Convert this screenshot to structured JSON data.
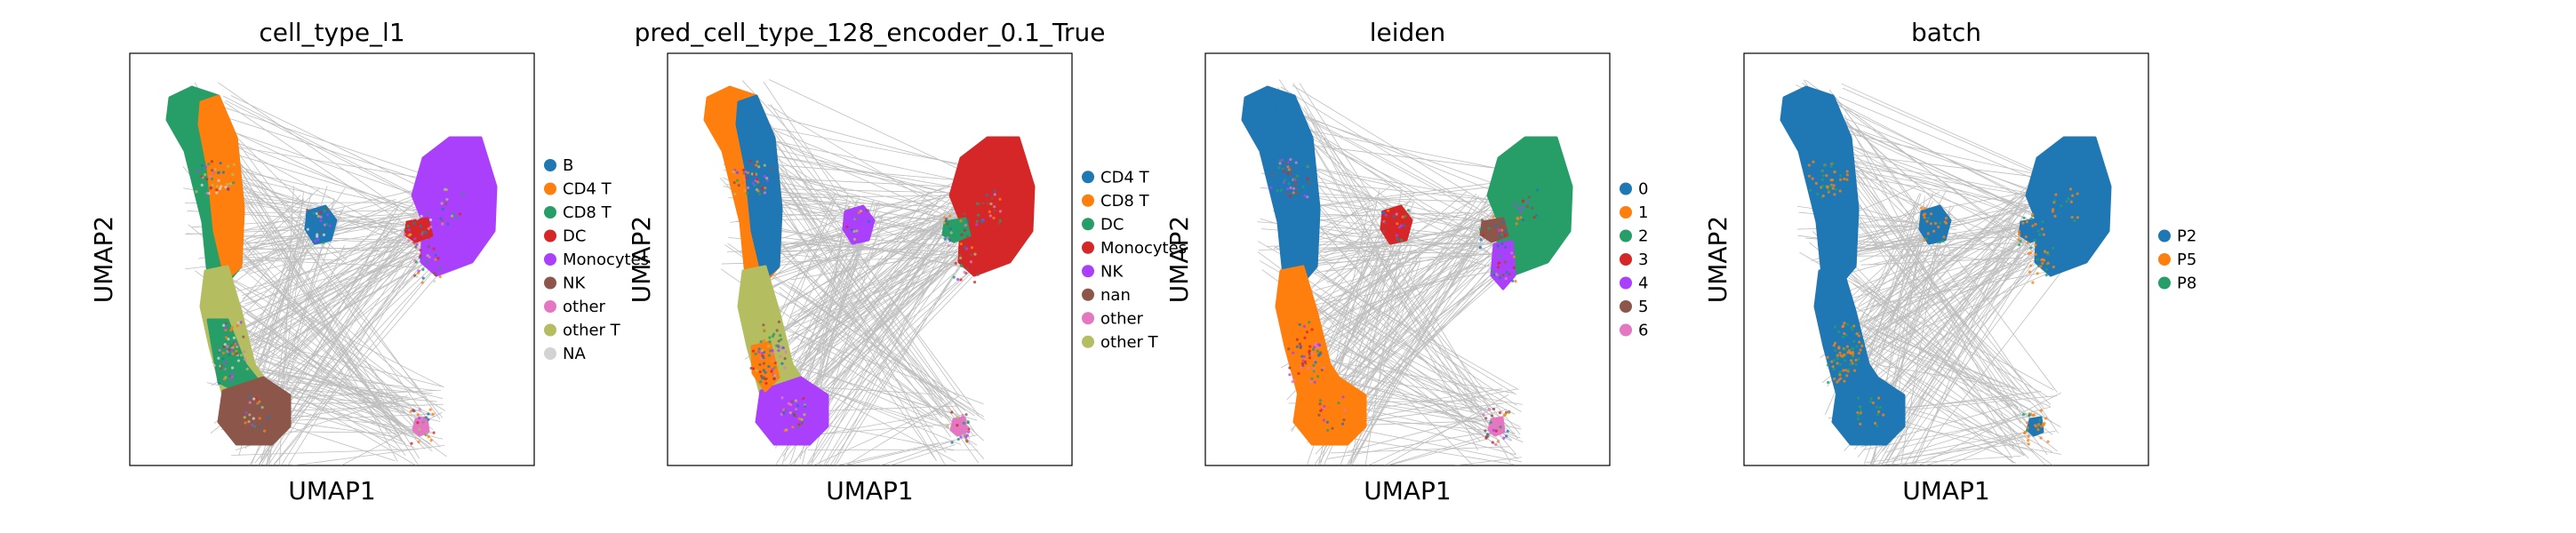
{
  "chart_data": [
    {
      "type": "scatter",
      "title": "cell_type_l1",
      "xlabel": "UMAP1",
      "ylabel": "UMAP2",
      "legend": {
        "placement": "right",
        "entries": [
          {
            "label": "B",
            "color": "#1f77b4"
          },
          {
            "label": "CD4 T",
            "color": "#ff7f0e"
          },
          {
            "label": "CD8 T",
            "color": "#279e68"
          },
          {
            "label": "DC",
            "color": "#d62728"
          },
          {
            "label": "Monocytes",
            "color": "#aa40fc"
          },
          {
            "label": "NK",
            "color": "#8c564b"
          },
          {
            "label": "other",
            "color": "#e377c2"
          },
          {
            "label": "other T",
            "color": "#b5bd61"
          },
          {
            "label": "NA",
            "color": "#d3d3d3"
          }
        ]
      }
    },
    {
      "type": "scatter",
      "title": "pred_cell_type_128_encoder_0.1_True",
      "xlabel": "UMAP1",
      "ylabel": "UMAP2",
      "legend": {
        "placement": "right",
        "entries": [
          {
            "label": "CD4 T",
            "color": "#1f77b4"
          },
          {
            "label": "CD8 T",
            "color": "#ff7f0e"
          },
          {
            "label": "DC",
            "color": "#279e68"
          },
          {
            "label": "Monocytes",
            "color": "#d62728"
          },
          {
            "label": "NK",
            "color": "#aa40fc"
          },
          {
            "label": "nan",
            "color": "#8c564b"
          },
          {
            "label": "other",
            "color": "#e377c2"
          },
          {
            "label": "other T",
            "color": "#b5bd61"
          }
        ]
      }
    },
    {
      "type": "scatter",
      "title": "leiden",
      "xlabel": "UMAP1",
      "ylabel": "UMAP2",
      "legend": {
        "placement": "right",
        "entries": [
          {
            "label": "0",
            "color": "#1f77b4"
          },
          {
            "label": "1",
            "color": "#ff7f0e"
          },
          {
            "label": "2",
            "color": "#279e68"
          },
          {
            "label": "3",
            "color": "#d62728"
          },
          {
            "label": "4",
            "color": "#aa40fc"
          },
          {
            "label": "5",
            "color": "#8c564b"
          },
          {
            "label": "6",
            "color": "#e377c2"
          }
        ]
      }
    },
    {
      "type": "scatter",
      "title": "batch",
      "xlabel": "UMAP1",
      "ylabel": "UMAP2",
      "legend": {
        "placement": "right",
        "entries": [
          {
            "label": "P2",
            "color": "#1f77b4"
          },
          {
            "label": "P5",
            "color": "#ff7f0e"
          },
          {
            "label": "P8",
            "color": "#279e68"
          }
        ]
      }
    }
  ]
}
